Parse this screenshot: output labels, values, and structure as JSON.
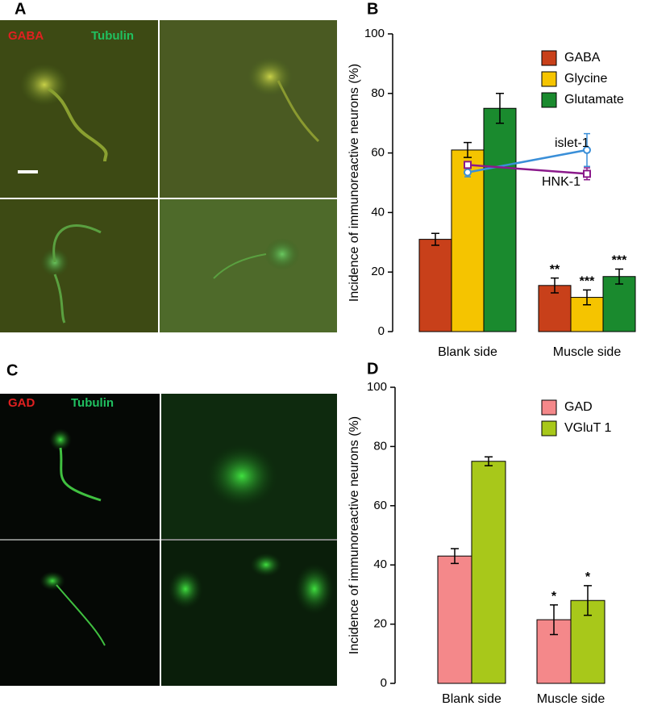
{
  "panels": {
    "a": {
      "letter": "A",
      "stain_red": "GABA",
      "stain_green": "Tubulin"
    },
    "c": {
      "letter": "C",
      "stain_red": "GAD",
      "stain_green": "Tubulin"
    }
  },
  "chart_data": [
    {
      "type": "bar",
      "letter": "B",
      "ylabel": "Incidence of immunoreactive neurons (%)",
      "categories": [
        "Blank side",
        "Muscle side"
      ],
      "ylim": [
        0,
        100
      ],
      "yticks": [
        0,
        20,
        40,
        60,
        80,
        100
      ],
      "legend": "top-right",
      "series": [
        {
          "name": "GABA",
          "color": "#c8401a",
          "values": [
            31,
            15.5
          ],
          "errors": [
            2,
            2.5
          ],
          "annotations": [
            null,
            "**"
          ]
        },
        {
          "name": "Glycine",
          "color": "#f5c400",
          "values": [
            61,
            11.5
          ],
          "errors": [
            2.5,
            2.5
          ],
          "annotations": [
            null,
            "***"
          ]
        },
        {
          "name": "Glutamate",
          "color": "#1a8a2e",
          "values": [
            75,
            18.5
          ],
          "errors": [
            5,
            2.5
          ],
          "annotations": [
            null,
            "***"
          ]
        },
        {
          "name": "islet-1",
          "type": "line",
          "marker": "circle",
          "color": "#3a8fd8",
          "values": [
            53.5,
            61
          ],
          "errors": [
            1.5,
            5.5
          ]
        },
        {
          "name": "HNK-1",
          "type": "line",
          "marker": "square",
          "color": "#8b1a8b",
          "values": [
            56,
            53
          ],
          "errors": [
            1,
            2
          ]
        }
      ]
    },
    {
      "type": "bar",
      "letter": "D",
      "ylabel": "Incidence of immunoreactive neurons (%)",
      "categories": [
        "Blank side",
        "Muscle side"
      ],
      "ylim": [
        0,
        100
      ],
      "yticks": [
        0,
        20,
        40,
        60,
        80,
        100
      ],
      "legend": "top-right",
      "series": [
        {
          "name": "GAD",
          "color": "#f4888a",
          "values": [
            43,
            21.5
          ],
          "errors": [
            2.5,
            5
          ],
          "annotations": [
            null,
            "*"
          ]
        },
        {
          "name": "VGluT 1",
          "color": "#a8c81a",
          "values": [
            75,
            28
          ],
          "errors": [
            1.5,
            5
          ],
          "annotations": [
            null,
            "*"
          ]
        }
      ]
    }
  ]
}
